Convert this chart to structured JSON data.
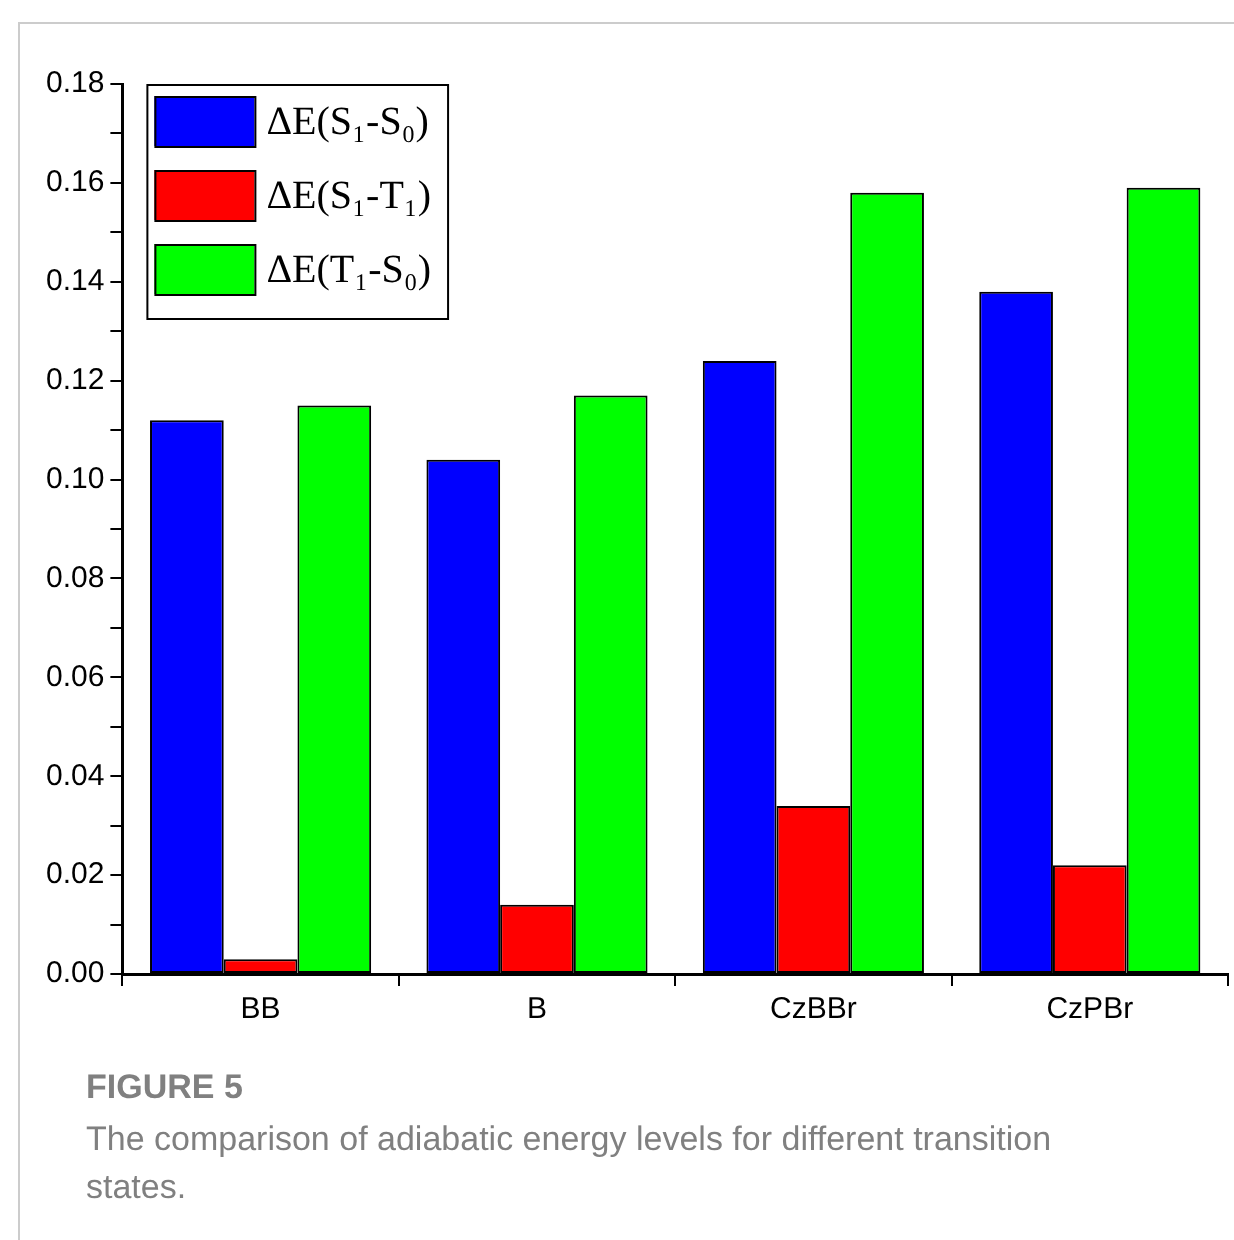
{
  "chart_data": {
    "type": "bar",
    "categories": [
      "BB",
      "B",
      "CzBBr",
      "CzPBr"
    ],
    "series": [
      {
        "name": "ΔE(S₁-S₀)",
        "color": "#0000ff",
        "values": [
          0.112,
          0.104,
          0.124,
          0.138
        ]
      },
      {
        "name": "ΔE(S₁-T₁)",
        "color": "#ff0000",
        "values": [
          0.003,
          0.014,
          0.034,
          0.022
        ]
      },
      {
        "name": "ΔE(T₁-S₀)",
        "color": "#00ff00",
        "values": [
          0.115,
          0.117,
          0.158,
          0.159
        ]
      }
    ],
    "ylim": [
      0,
      0.18
    ],
    "yticks": [
      {
        "value": 0,
        "label": "0.00"
      },
      {
        "value": 0.01,
        "label": null
      },
      0.02,
      {
        "value": 0.03,
        "label": null
      },
      0.04,
      {
        "value": 0.05,
        "label": null
      },
      0.06,
      {
        "value": 0.07,
        "label": null
      },
      0.08,
      {
        "value": 0.09,
        "label": null
      },
      {
        "value": 0.1,
        "label": "0.10"
      },
      {
        "value": 0.11,
        "label": null
      },
      0.12,
      {
        "value": 0.13,
        "label": null
      },
      0.14,
      {
        "value": 0.15,
        "label": null
      },
      0.16,
      {
        "value": 0.17,
        "label": null
      },
      0.18
    ],
    "grid": false,
    "legend": "top left",
    "annotations": [
      "FIGURE 5",
      "The comparison of adiabatic energy levels for different transition states."
    ]
  }
}
